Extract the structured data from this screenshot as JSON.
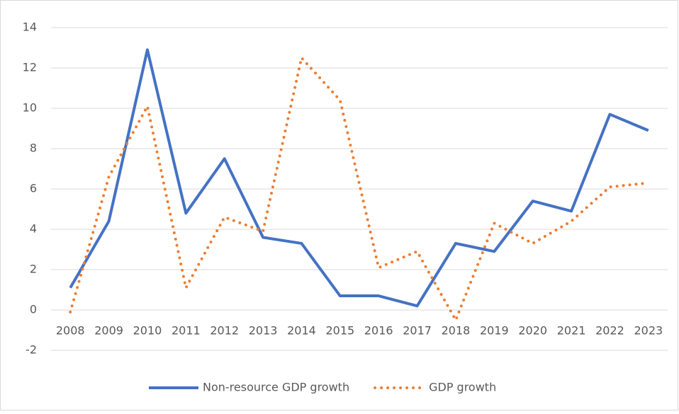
{
  "chart_data": {
    "type": "line",
    "categories": [
      "2008",
      "2009",
      "2010",
      "2011",
      "2012",
      "2013",
      "2014",
      "2015",
      "2016",
      "2017",
      "2018",
      "2019",
      "2020",
      "2021",
      "2022",
      "2023"
    ],
    "series": [
      {
        "name": "Non-resource GDP growth",
        "color": "#4472c4",
        "style": "solid",
        "values": [
          1.1,
          4.4,
          12.9,
          4.8,
          7.5,
          3.6,
          3.3,
          0.7,
          0.7,
          0.2,
          3.3,
          2.9,
          5.4,
          4.9,
          9.7,
          8.9
        ]
      },
      {
        "name": "GDP growth",
        "color": "#ed7d31",
        "style": "dotted",
        "values": [
          -0.1,
          6.6,
          10.1,
          1.1,
          4.6,
          3.9,
          12.5,
          10.4,
          2.1,
          2.9,
          -0.5,
          4.3,
          3.3,
          4.4,
          6.1,
          6.3
        ]
      }
    ],
    "ylim": [
      -2,
      14
    ],
    "yticks": [
      -2,
      0,
      2,
      4,
      6,
      8,
      10,
      12,
      14
    ],
    "grid": true,
    "legend": "bottom"
  }
}
